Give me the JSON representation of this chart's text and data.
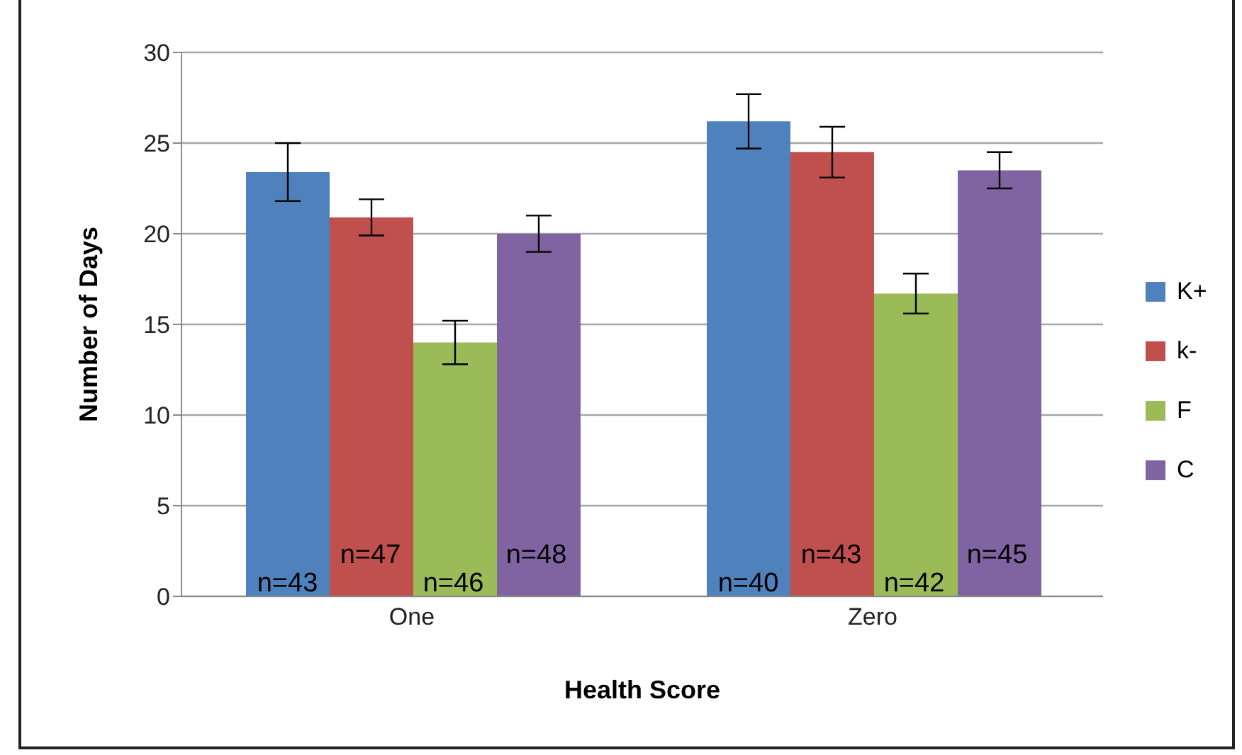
{
  "chart_data": {
    "type": "bar",
    "xlabel": "Health Score",
    "ylabel": "Number of Days",
    "categories": [
      "One",
      "Zero"
    ],
    "series": [
      {
        "name": "K+",
        "color": "#4f81bd",
        "values": [
          23.4,
          26.2
        ],
        "errors": [
          1.6,
          1.5
        ]
      },
      {
        "name": "k-",
        "color": "#c0504d",
        "values": [
          20.9,
          24.5
        ],
        "errors": [
          1.0,
          1.4
        ]
      },
      {
        "name": "F",
        "color": "#9bbb59",
        "values": [
          14.0,
          16.7
        ],
        "errors": [
          1.2,
          1.1
        ]
      },
      {
        "name": "C",
        "color": "#8064a2",
        "values": [
          20.0,
          23.5
        ],
        "errors": [
          1.0,
          1.0
        ]
      }
    ],
    "annotations": [
      "n=43",
      "n=47",
      "n=46",
      "n=48",
      "n=40",
      "n=43",
      "n=42",
      "n=45"
    ],
    "ylim": [
      0,
      30
    ],
    "yticks": [
      0,
      5,
      10,
      15,
      20,
      25,
      30
    ],
    "grid": "y",
    "legend": "right"
  }
}
